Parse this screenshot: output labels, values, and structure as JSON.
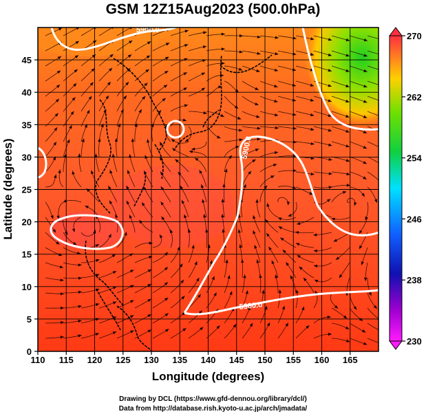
{
  "title": "GSM 12Z15Aug2023 (500.0hPa)",
  "x_axis": {
    "label": "Longitude (degrees)",
    "ticks": [
      110,
      115,
      120,
      125,
      130,
      135,
      140,
      145,
      150,
      155,
      160,
      165
    ],
    "range": [
      110,
      170
    ]
  },
  "y_axis": {
    "label": "Latitude  (degrees)",
    "ticks": [
      0,
      5,
      10,
      15,
      20,
      25,
      30,
      35,
      40,
      45
    ],
    "range": [
      0,
      50
    ]
  },
  "colorbar": {
    "ticks": [
      270,
      262,
      254,
      246,
      238,
      230
    ],
    "range": [
      230,
      270
    ]
  },
  "contour_labels": [
    "5900.0",
    "5900.0",
    "5900.0"
  ],
  "credits": {
    "line1": "Drawing by DCL (https://www.gfd-dennou.org/library/dcl/)",
    "line2": "Data from http://database.rish.kyoto-u.ac.jp/arch/jmadata/"
  }
}
